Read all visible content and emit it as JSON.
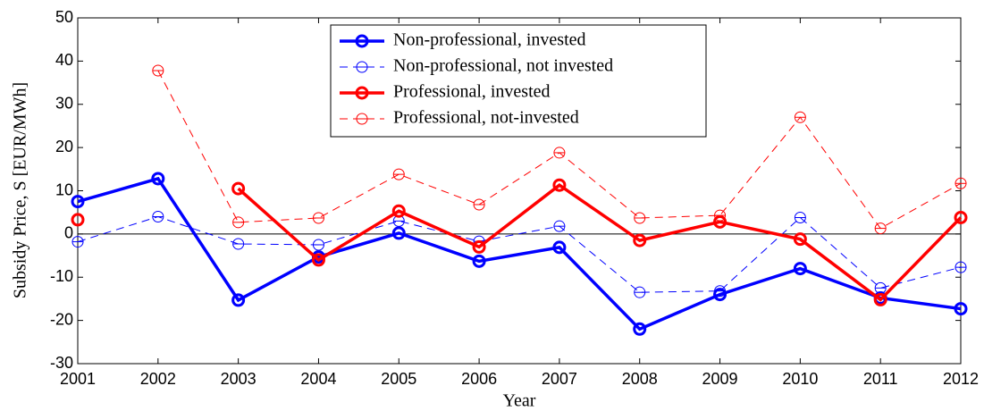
{
  "chart_data": {
    "type": "line",
    "x_label": "Year",
    "y_label": "Subsidy Price, S [EUR/MWh]",
    "x": [
      2001,
      2002,
      2003,
      2004,
      2005,
      2006,
      2007,
      2008,
      2009,
      2010,
      2011,
      2012
    ],
    "xlim": [
      2001,
      2012
    ],
    "xticks": [
      2001,
      2002,
      2003,
      2004,
      2005,
      2006,
      2007,
      2008,
      2009,
      2010,
      2011,
      2012
    ],
    "ylim": [
      -30,
      50
    ],
    "yticks": [
      -30,
      -20,
      -10,
      0,
      10,
      20,
      30,
      40,
      50
    ],
    "zero_line": true,
    "legend": "top",
    "series": [
      {
        "name": "Non-professional, invested",
        "color": "#0000ff",
        "dashed": false,
        "values": [
          7.5,
          12.8,
          -15.3,
          -5.3,
          0.2,
          -6.3,
          -3.1,
          -22,
          -14,
          -8,
          -14.8,
          -17.3
        ]
      },
      {
        "name": "Non-professional, not invested",
        "color": "#0000ff",
        "dashed": true,
        "values": [
          -1.8,
          4,
          -2.3,
          -2.5,
          3,
          -1.7,
          1.8,
          -13.5,
          -13.2,
          3.8,
          -12.5,
          -7.7
        ]
      },
      {
        "name": "Professional, invested",
        "color": "#ff0000",
        "dashed": false,
        "values": [
          3.3,
          null,
          10.5,
          -6,
          5.3,
          -3,
          11.3,
          -1.5,
          2.8,
          -1.2,
          -15.2,
          3.8
        ]
      },
      {
        "name": "Professional, not-invested",
        "color": "#ff0000",
        "dashed": true,
        "values": [
          null,
          37.8,
          2.7,
          3.7,
          13.8,
          6.8,
          18.8,
          3.7,
          4.3,
          27,
          1.3,
          11.7
        ]
      }
    ]
  }
}
